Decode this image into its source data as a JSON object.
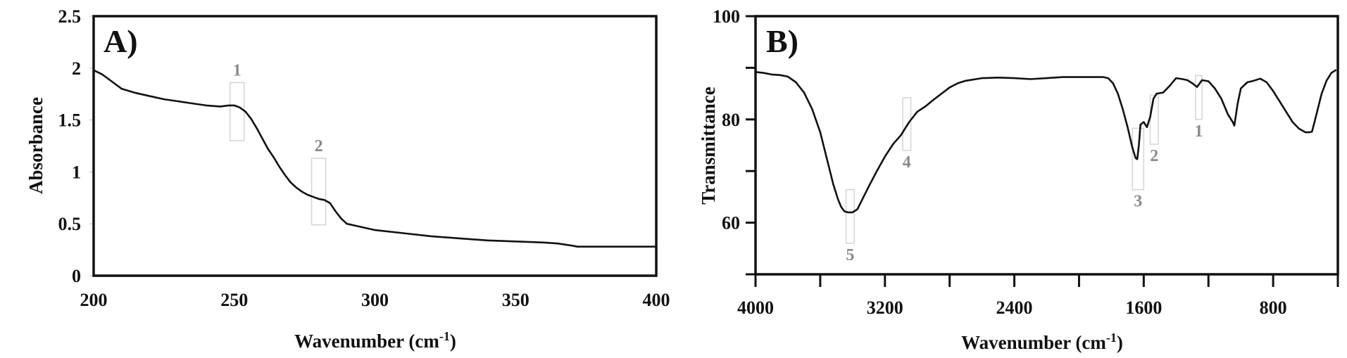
{
  "chart_data": [
    {
      "type": "line",
      "panel_label": "A)",
      "title": "",
      "xlabel": "Wavenumber (cm-1)",
      "ylabel": "Absorbance",
      "xlim": [
        200,
        400
      ],
      "ylim": [
        0,
        2.5
      ],
      "xticks": [
        200,
        250,
        300,
        350,
        400
      ],
      "yticks": [
        0,
        0.5,
        1,
        1.5,
        2,
        2.5
      ],
      "xtick_labels": [
        "200",
        "250",
        "300",
        "350",
        "400"
      ],
      "ytick_labels": [
        "0",
        "0.5",
        "1",
        "1.5",
        "2",
        "2.5"
      ],
      "grid": false,
      "series": [
        {
          "name": "Absorbance",
          "x": [
            200,
            203,
            206,
            210,
            215,
            220,
            225,
            230,
            235,
            240,
            245,
            248,
            250,
            252,
            254,
            256,
            258,
            260,
            262,
            264,
            266,
            268,
            270,
            272,
            274,
            276,
            278,
            280,
            282,
            284,
            286,
            288,
            290,
            295,
            300,
            310,
            320,
            330,
            340,
            350,
            360,
            365,
            370,
            372,
            375,
            380,
            390,
            400
          ],
          "y": [
            1.98,
            1.94,
            1.88,
            1.8,
            1.76,
            1.73,
            1.7,
            1.68,
            1.66,
            1.64,
            1.63,
            1.64,
            1.64,
            1.62,
            1.58,
            1.51,
            1.42,
            1.32,
            1.22,
            1.14,
            1.05,
            0.97,
            0.9,
            0.85,
            0.81,
            0.78,
            0.76,
            0.74,
            0.73,
            0.7,
            0.62,
            0.55,
            0.5,
            0.47,
            0.44,
            0.41,
            0.38,
            0.36,
            0.34,
            0.33,
            0.32,
            0.31,
            0.29,
            0.28,
            0.28,
            0.28,
            0.28,
            0.28
          ]
        }
      ],
      "annotations": [
        {
          "label": "1",
          "x_range": [
            248.5,
            253.5
          ],
          "y_range": [
            1.3,
            1.86
          ],
          "label_pos": "top"
        },
        {
          "label": "2",
          "x_range": [
            277.5,
            282.5
          ],
          "y_range": [
            0.49,
            1.13
          ],
          "label_pos": "top"
        }
      ]
    },
    {
      "type": "line",
      "panel_label": "B)",
      "title": "",
      "xlabel": "Wavenumber (cm-1)",
      "ylabel": "Transmittance",
      "xlim": [
        4000,
        400
      ],
      "ylim": [
        50,
        100
      ],
      "xticks": [
        4000,
        3600,
        3200,
        2800,
        2400,
        2000,
        1600,
        1200,
        800,
        400
      ],
      "yticks": [
        50,
        60,
        70,
        80,
        90,
        100
      ],
      "xtick_labels": [
        "4000",
        "",
        "3200",
        "",
        "2400",
        "",
        "1600",
        "",
        "800",
        ""
      ],
      "ytick_labels": [
        "",
        "60",
        "",
        "80",
        "",
        "100"
      ],
      "grid": false,
      "series": [
        {
          "name": "Transmittance",
          "x": [
            4000,
            3950,
            3900,
            3850,
            3800,
            3750,
            3700,
            3650,
            3600,
            3560,
            3520,
            3490,
            3470,
            3450,
            3430,
            3400,
            3370,
            3340,
            3300,
            3250,
            3200,
            3150,
            3100,
            3070,
            3050,
            3000,
            2950,
            2900,
            2850,
            2800,
            2750,
            2700,
            2600,
            2500,
            2400,
            2300,
            2200,
            2100,
            2000,
            1900,
            1850,
            1820,
            1790,
            1760,
            1730,
            1700,
            1670,
            1650,
            1640,
            1630,
            1620,
            1600,
            1580,
            1560,
            1540,
            1520,
            1480,
            1440,
            1400,
            1360,
            1330,
            1300,
            1270,
            1240,
            1200,
            1160,
            1120,
            1080,
            1050,
            1040,
            1020,
            1000,
            960,
            920,
            880,
            840,
            800,
            760,
            720,
            680,
            640,
            600,
            580,
            560,
            540,
            520,
            500,
            470,
            440,
            410
          ],
          "y": [
            89.2,
            89.0,
            88.7,
            88.6,
            88.3,
            87.2,
            85.2,
            82.0,
            77.5,
            72.5,
            67.5,
            64.5,
            63.0,
            62.2,
            62.0,
            62.0,
            62.6,
            64.5,
            67.0,
            70.0,
            72.8,
            75.2,
            77.0,
            78.5,
            79.5,
            81.5,
            82.5,
            83.8,
            85.0,
            86.2,
            87.0,
            87.5,
            88.0,
            88.1,
            88.0,
            87.8,
            88.0,
            88.2,
            88.2,
            88.2,
            88.2,
            88.0,
            87.0,
            85.0,
            82.0,
            78.5,
            74.5,
            72.5,
            72.3,
            75.0,
            79.0,
            79.5,
            78.5,
            80.5,
            84.0,
            85.0,
            85.2,
            86.5,
            88.0,
            87.8,
            87.6,
            87.0,
            86.3,
            87.6,
            87.4,
            86.0,
            84.0,
            81.0,
            79.5,
            78.8,
            83.0,
            86.0,
            87.2,
            87.5,
            87.9,
            87.2,
            85.5,
            83.5,
            81.5,
            79.5,
            78.2,
            77.5,
            77.5,
            77.6,
            80.0,
            82.5,
            85.0,
            87.5,
            89.0,
            89.6
          ]
        }
      ],
      "annotations": [
        {
          "label": "1",
          "x_range": [
            1280,
            1240
          ],
          "y_range": [
            80,
            88.5
          ],
          "label_pos": "bottom"
        },
        {
          "label": "2",
          "x_range": [
            1560,
            1510
          ],
          "y_range": [
            75.2,
            84.7
          ],
          "label_pos": "bottom"
        },
        {
          "label": "3",
          "x_range": [
            1670,
            1600
          ],
          "y_range": [
            66.4,
            78.3
          ],
          "label_pos": "bottom"
        },
        {
          "label": "4",
          "x_range": [
            3090,
            3040
          ],
          "y_range": [
            74,
            84.2
          ],
          "label_pos": "bottom"
        },
        {
          "label": "5",
          "x_range": [
            3440,
            3390
          ],
          "y_range": [
            56,
            66.4
          ],
          "label_pos": "bottom"
        }
      ]
    }
  ],
  "panels": {
    "a": {
      "label": "A)",
      "ylabel": "Absorbance",
      "xlabel_main": "Wavenumber (cm",
      "xlabel_sup": "-1",
      "xlabel_end": ")"
    },
    "b": {
      "label": "B)",
      "ylabel": "Transmittance",
      "xlabel_main": "Wavenumber (cm",
      "xlabel_sup": "-1",
      "xlabel_end": ")"
    }
  },
  "colors": {
    "line": "#111111",
    "annotation_box": "#d4d4d4",
    "annotation_text": "#8a8a8a"
  }
}
